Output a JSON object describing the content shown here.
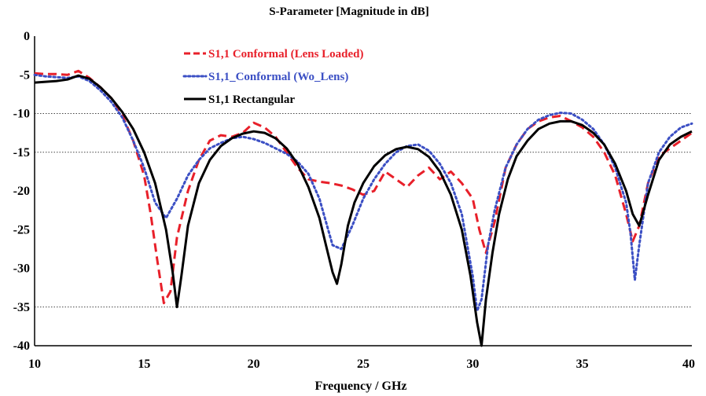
{
  "chart_data": {
    "type": "line",
    "title": "S-Parameter [Magnitude in dB]",
    "xlabel": "Frequency / GHz",
    "ylabel": "",
    "xlim": [
      10,
      40
    ],
    "ylim": [
      -40,
      0
    ],
    "x_ticks": [
      "10",
      "15",
      "20",
      "25",
      "30",
      "35",
      "40"
    ],
    "y_ticks": [
      "0",
      "-5",
      "-10",
      "-15",
      "-20",
      "-25",
      "-30",
      "-35",
      "-40"
    ],
    "grid": "horizontal dotted lines at -10, -15, -35",
    "legend_position": "top-center",
    "series": [
      {
        "name": "S1,1  Conformal (Lens Loaded)",
        "color": "#e8202a",
        "style": "dashed",
        "x": [
          10,
          10.5,
          11,
          11.5,
          12,
          12.5,
          13,
          13.5,
          14,
          14.5,
          15,
          15.3,
          15.6,
          15.9,
          16.2,
          16.5,
          17,
          17.5,
          18,
          18.5,
          19,
          19.5,
          20,
          20.5,
          21,
          21.5,
          22,
          22.5,
          23,
          23.5,
          24,
          24.5,
          25,
          25.5,
          26,
          26.5,
          27,
          27.5,
          28,
          28.5,
          29,
          29.5,
          30,
          30.3,
          30.6,
          31,
          31.5,
          32,
          32.5,
          33,
          33.5,
          34,
          34.5,
          35,
          35.5,
          36,
          36.5,
          37,
          37.3,
          37.6,
          38,
          38.5,
          39,
          39.5,
          40
        ],
        "values": [
          -4.8,
          -4.9,
          -4.9,
          -5.0,
          -4.5,
          -5.4,
          -6.6,
          -8.0,
          -10.2,
          -13.5,
          -18.0,
          -23.0,
          -29.0,
          -34.5,
          -33.0,
          -26.0,
          -20.0,
          -16.0,
          -13.5,
          -12.8,
          -13.0,
          -12.5,
          -11.2,
          -11.8,
          -13.0,
          -15.0,
          -17.0,
          -18.5,
          -18.8,
          -19.0,
          -19.3,
          -19.8,
          -20.5,
          -20.0,
          -17.5,
          -18.5,
          -19.5,
          -18.0,
          -17.0,
          -18.5,
          -17.5,
          -19.0,
          -21.0,
          -25.0,
          -28.0,
          -24.0,
          -17.0,
          -14.0,
          -12.0,
          -11.0,
          -10.5,
          -10.3,
          -11.0,
          -11.8,
          -13.0,
          -15.0,
          -18.0,
          -23.0,
          -26.5,
          -24.5,
          -19.0,
          -15.5,
          -14.5,
          -13.5,
          -12.5
        ]
      },
      {
        "name": "S1,1_Conformal (Wo_Lens)",
        "color": "#3b4fc4",
        "style": "dotted",
        "x": [
          10,
          10.5,
          11,
          11.5,
          12,
          12.5,
          13,
          13.5,
          14,
          14.5,
          15,
          15.5,
          16,
          16.5,
          17,
          17.5,
          18,
          18.5,
          19,
          19.5,
          20,
          20.5,
          21,
          21.5,
          22,
          22.5,
          23,
          23.3,
          23.6,
          24,
          24.5,
          25,
          25.5,
          26,
          26.5,
          27,
          27.5,
          28,
          28.5,
          29,
          29.5,
          30,
          30.2,
          30.4,
          30.7,
          31,
          31.5,
          32,
          32.5,
          33,
          33.5,
          34,
          34.5,
          35,
          35.5,
          36,
          36.5,
          37,
          37.2,
          37.4,
          37.6,
          38,
          38.5,
          39,
          39.5,
          40
        ],
        "values": [
          -5.0,
          -5.2,
          -5.3,
          -5.4,
          -5.2,
          -5.8,
          -7.0,
          -8.5,
          -10.5,
          -13.5,
          -17.0,
          -21.5,
          -23.5,
          -21.0,
          -18.0,
          -16.0,
          -14.5,
          -13.8,
          -13.2,
          -13.0,
          -13.3,
          -13.8,
          -14.5,
          -15.2,
          -16.2,
          -17.8,
          -21.0,
          -24.0,
          -27.0,
          -27.5,
          -24.5,
          -21.0,
          -18.5,
          -16.5,
          -15.0,
          -14.2,
          -14.0,
          -14.8,
          -16.5,
          -19.0,
          -23.0,
          -31.0,
          -35.5,
          -34.0,
          -27.0,
          -22.5,
          -17.0,
          -14.0,
          -12.0,
          -10.8,
          -10.2,
          -9.9,
          -10.0,
          -10.8,
          -12.0,
          -14.0,
          -17.0,
          -21.5,
          -25.5,
          -31.5,
          -27.0,
          -19.0,
          -15.0,
          -13.0,
          -11.8,
          -11.3
        ]
      },
      {
        "name": "S1,1  Rectangular",
        "color": "#000000",
        "style": "solid",
        "x": [
          10,
          10.5,
          11,
          11.5,
          12,
          12.5,
          13,
          13.5,
          14,
          14.5,
          15,
          15.5,
          16,
          16.3,
          16.5,
          16.7,
          17,
          17.5,
          18,
          18.5,
          19,
          19.5,
          20,
          20.5,
          21,
          21.5,
          22,
          22.5,
          23,
          23.3,
          23.6,
          23.8,
          24,
          24.3,
          24.6,
          25,
          25.5,
          26,
          26.5,
          27,
          27.5,
          28,
          28.5,
          29,
          29.5,
          29.9,
          30.2,
          30.4,
          30.6,
          30.9,
          31.2,
          31.6,
          32,
          32.5,
          33,
          33.5,
          34,
          34.5,
          35,
          35.5,
          36,
          36.5,
          37,
          37.3,
          37.6,
          38,
          38.5,
          39,
          39.5,
          40
        ],
        "values": [
          -6.0,
          -5.9,
          -5.8,
          -5.6,
          -5.1,
          -5.5,
          -6.6,
          -8.0,
          -9.8,
          -12.0,
          -15.0,
          -19.0,
          -25.0,
          -30.5,
          -35.0,
          -31.0,
          -24.5,
          -19.0,
          -16.0,
          -14.2,
          -13.2,
          -12.6,
          -12.3,
          -12.5,
          -13.2,
          -14.5,
          -16.5,
          -19.5,
          -23.5,
          -27.0,
          -30.5,
          -32.0,
          -29.5,
          -24.5,
          -21.5,
          -19.0,
          -16.8,
          -15.4,
          -14.6,
          -14.3,
          -14.6,
          -15.6,
          -17.5,
          -20.5,
          -25.0,
          -31.0,
          -37.0,
          -40.0,
          -34.0,
          -28.0,
          -23.0,
          -18.5,
          -15.5,
          -13.5,
          -12.0,
          -11.3,
          -11.0,
          -11.0,
          -11.5,
          -12.5,
          -14.0,
          -16.5,
          -20.0,
          -23.0,
          -24.5,
          -20.5,
          -16.0,
          -14.0,
          -13.0,
          -12.3
        ]
      }
    ]
  }
}
